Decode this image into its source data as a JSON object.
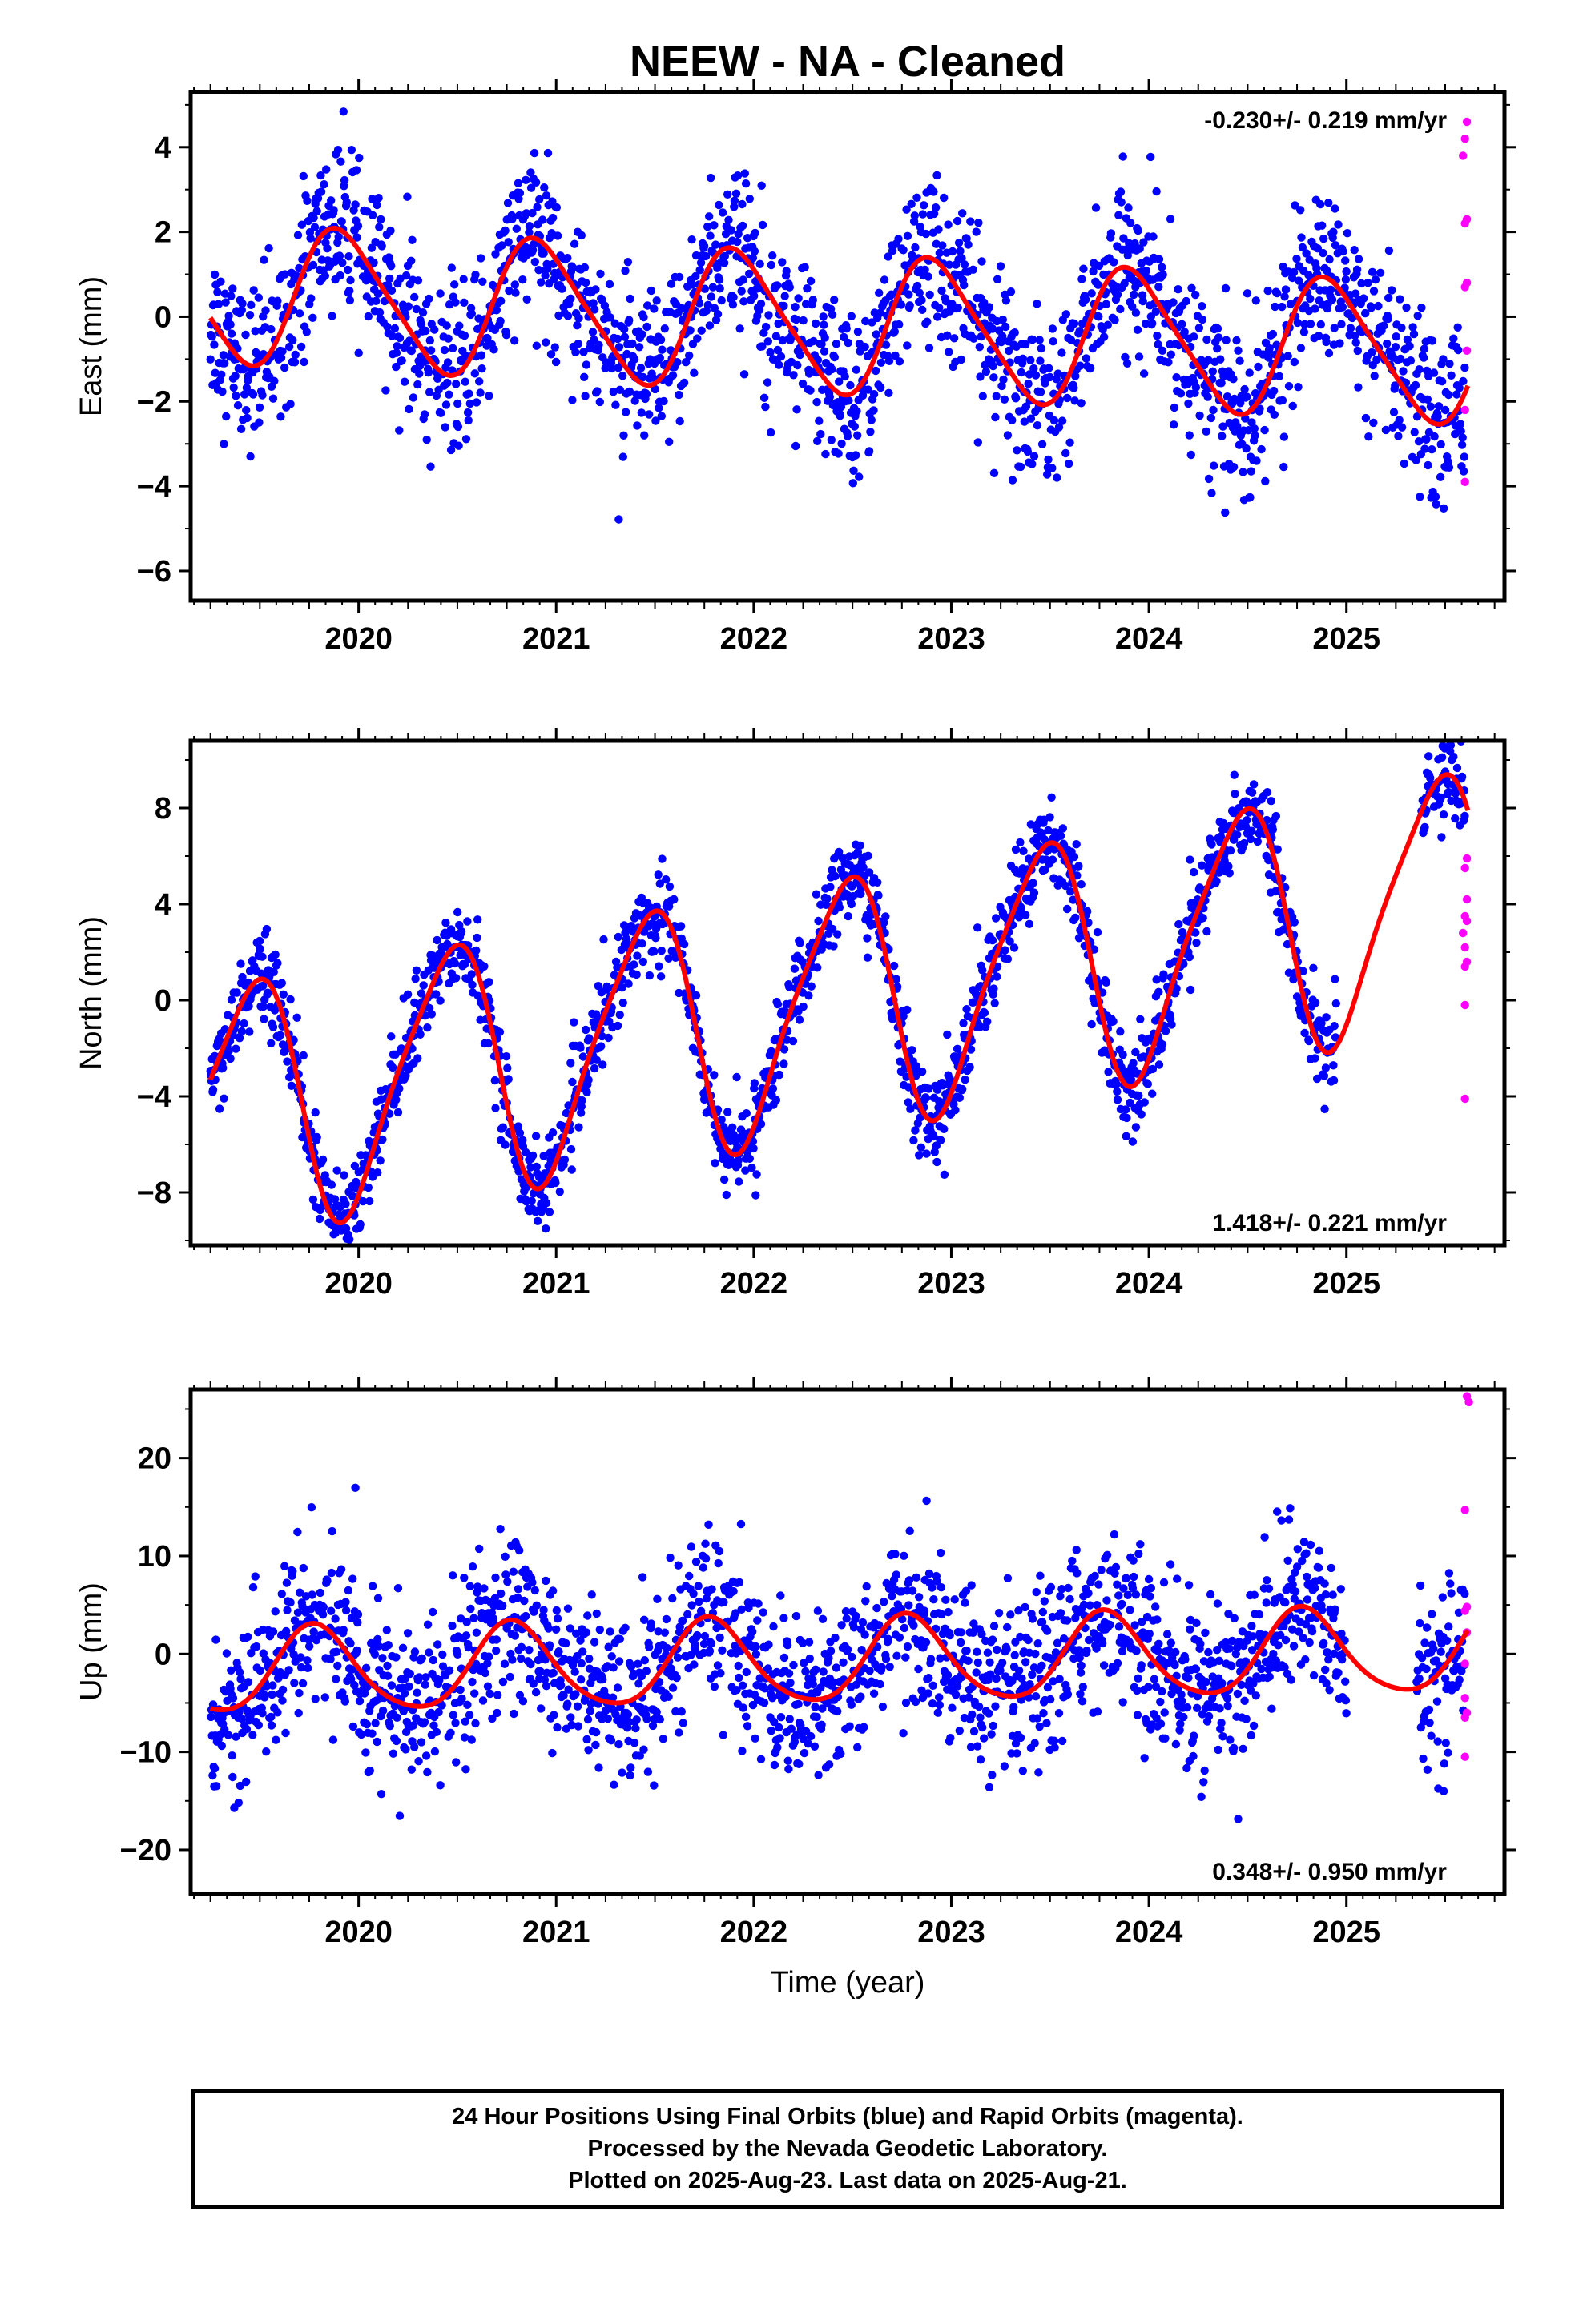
{
  "title": "NEEW  - NA - Cleaned",
  "xlabel": "Time (year)",
  "x_ticks": [
    "2020",
    "2021",
    "2022",
    "2023",
    "2024",
    "2025"
  ],
  "footer": {
    "line1": "24 Hour Positions Using Final Orbits (blue) and Rapid Orbits (magenta).",
    "line2": "Processed by the Nevada Geodetic Laboratory.",
    "line3": "Plotted on 2025-Aug-23. Last data on 2025-Aug-21."
  },
  "colors": {
    "final_orbits": "#0000ff",
    "rapid_orbits": "#ff00ff",
    "model_fit": "#ff0000"
  },
  "chart_data": [
    {
      "type": "scatter",
      "panel": "east",
      "ylabel": "East (mm)",
      "rate_label": "-0.230+/- 0.219 mm/yr",
      "xlim": [
        2019.15,
        2025.8
      ],
      "ylim": [
        -6.7,
        5.3
      ],
      "yticks": [
        -6,
        -4,
        -2,
        0,
        2,
        4
      ],
      "model": {
        "trend": -0.23,
        "center": 2022.5,
        "offset": -0.2,
        "annual_amp": 1.6,
        "annual_peak": 2019.92,
        "semi_amp": 0.25,
        "semi_peak": 2019.8
      },
      "series": [
        {
          "name": "Final Orbits",
          "color": "#0000ff",
          "x_range": [
            2019.25,
            2025.6
          ],
          "scatter_sd": 0.95
        },
        {
          "name": "Rapid Orbits",
          "color": "#ff00ff",
          "points": [
            [
              2025.61,
              4.6
            ],
            [
              2025.6,
              4.2
            ],
            [
              2025.59,
              3.8
            ],
            [
              2025.61,
              2.3
            ],
            [
              2025.6,
              2.2
            ],
            [
              2025.61,
              0.8
            ],
            [
              2025.6,
              0.7
            ],
            [
              2025.61,
              -0.8
            ],
            [
              2025.6,
              -2.2
            ],
            [
              2025.6,
              -3.9
            ]
          ]
        }
      ]
    },
    {
      "type": "scatter",
      "panel": "north",
      "ylabel": "North (mm)",
      "rate_label": "1.418+/- 0.221 mm/yr",
      "xlim": [
        2019.15,
        2025.8
      ],
      "ylim": [
        -10.2,
        10.8
      ],
      "yticks": [
        -8,
        -4,
        0,
        4,
        8
      ],
      "model": {
        "trend": 1.418,
        "center": 2022.5,
        "offset": 0.0,
        "annual_amp": 5.1,
        "annual_peak": 2019.45,
        "semi_amp": 0.9,
        "semi_peak": 2019.6
      },
      "series": [
        {
          "name": "Final Orbits",
          "color": "#0000ff",
          "x_range": [
            2019.25,
            2025.6
          ],
          "scatter_sd": 0.9,
          "gap": [
            2024.95,
            2025.38
          ]
        },
        {
          "name": "Rapid Orbits",
          "color": "#ff00ff",
          "points": [
            [
              2025.61,
              5.9
            ],
            [
              2025.6,
              5.5
            ],
            [
              2025.61,
              4.2
            ],
            [
              2025.6,
              3.5
            ],
            [
              2025.61,
              3.3
            ],
            [
              2025.59,
              2.8
            ],
            [
              2025.6,
              2.2
            ],
            [
              2025.61,
              1.6
            ],
            [
              2025.6,
              1.4
            ],
            [
              2025.6,
              -0.2
            ],
            [
              2025.6,
              -4.1
            ]
          ]
        }
      ]
    },
    {
      "type": "scatter",
      "panel": "up",
      "ylabel": "Up (mm)",
      "rate_label": "0.348+/- 0.950 mm/yr",
      "xlim": [
        2019.15,
        2025.8
      ],
      "ylim": [
        -24.5,
        27.0
      ],
      "yticks": [
        -20,
        -10,
        0,
        10,
        20
      ],
      "model": {
        "trend": 0.348,
        "center": 2022.5,
        "offset": -0.8,
        "annual_amp": 4.3,
        "annual_peak": 2019.78,
        "semi_amp": 0.6,
        "semi_peak": 2019.75
      },
      "series": [
        {
          "name": "Final Orbits",
          "color": "#0000ff",
          "x_range": [
            2019.25,
            2025.6
          ],
          "scatter_sd": 4.2,
          "gap": [
            2025.0,
            2025.35
          ]
        },
        {
          "name": "Rapid Orbits",
          "color": "#ff00ff",
          "points": [
            [
              2025.61,
              26.3
            ],
            [
              2025.62,
              25.7
            ],
            [
              2025.6,
              14.7
            ],
            [
              2025.61,
              4.8
            ],
            [
              2025.6,
              4.4
            ],
            [
              2025.61,
              2.2
            ],
            [
              2025.6,
              -1.0
            ],
            [
              2025.6,
              -4.5
            ],
            [
              2025.61,
              -6.0
            ],
            [
              2025.6,
              -6.5
            ],
            [
              2025.6,
              -10.5
            ]
          ]
        }
      ]
    }
  ]
}
